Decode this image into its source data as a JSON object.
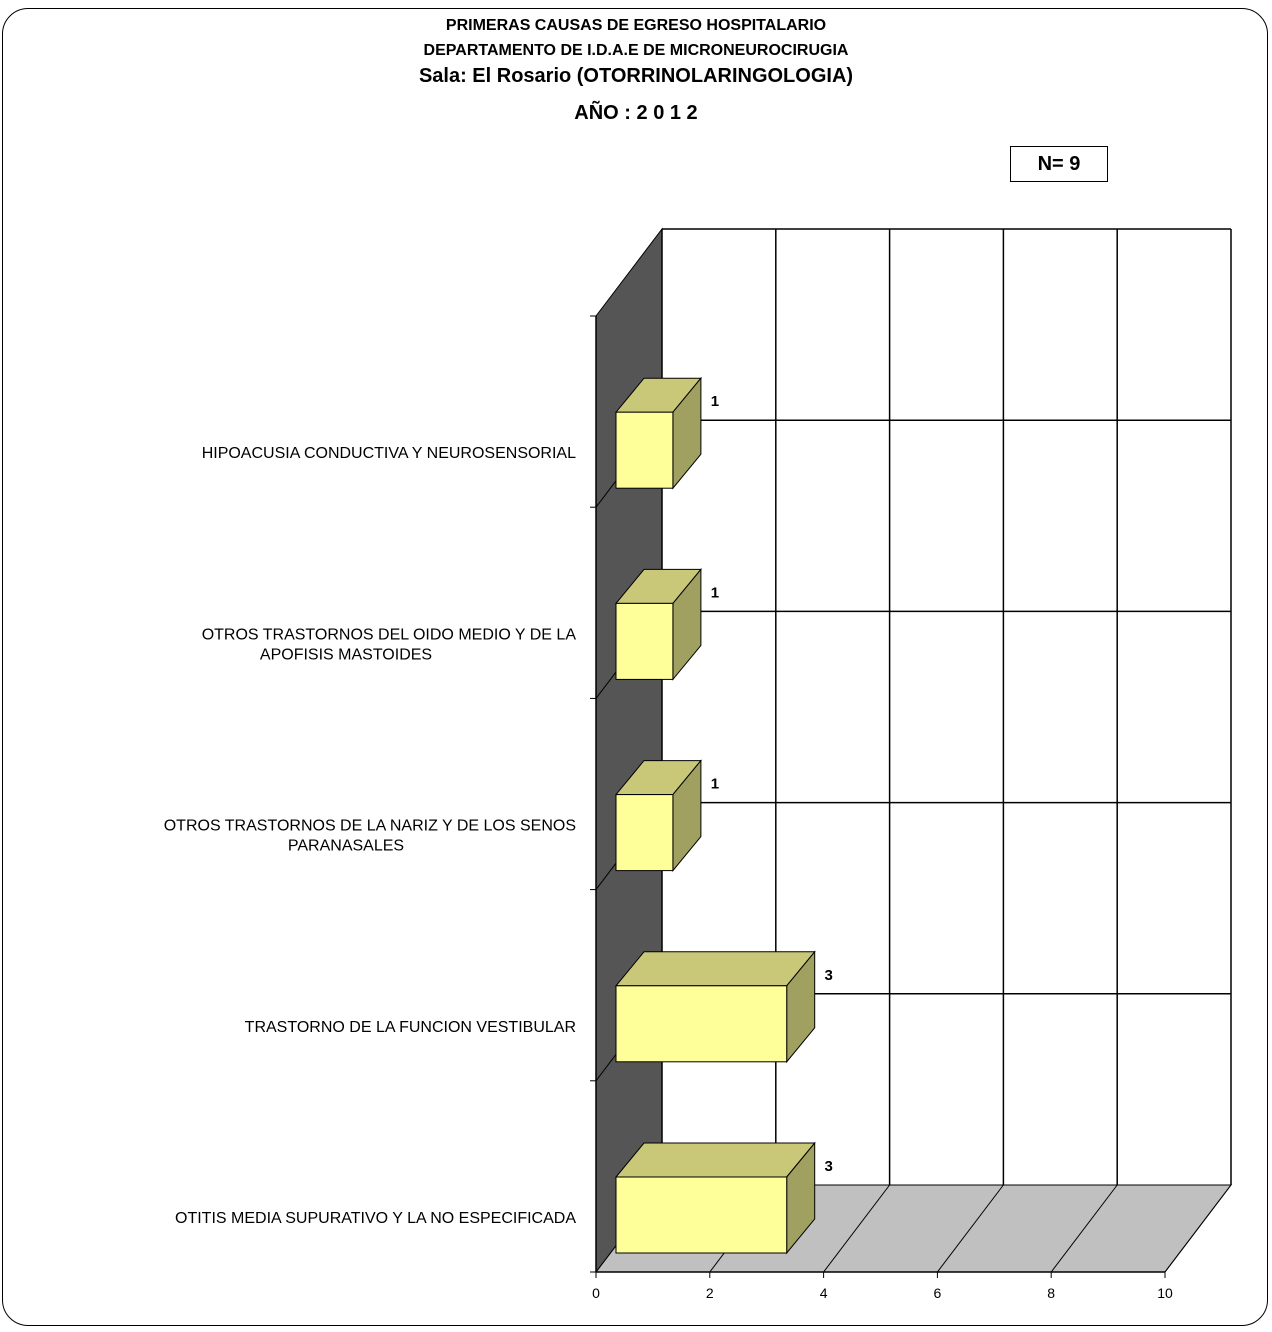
{
  "titles": {
    "line1": "PRIMERAS CAUSAS DE EGRESO HOSPITALARIO",
    "line2": "DEPARTAMENTO DE I.D.A.E DE MICRONEUROCIRUGIA",
    "line3": "Sala: El Rosario (OTORRINOLARINGOLOGIA)",
    "line4": "AÑO : 2 0 1 2"
  },
  "n_label": "N= 9",
  "colors": {
    "bar_front": "#ffff99",
    "bar_top": "#c8c878",
    "bar_side": "#a0a060",
    "wall": "#555555",
    "floor": "#c0c0c0",
    "grid": "#000000"
  },
  "chart_data": {
    "type": "bar",
    "orientation": "horizontal",
    "style": "3d",
    "categories": [
      [
        "HIPOACUSIA CONDUCTIVA Y NEUROSENSORIAL"
      ],
      [
        "OTROS TRASTORNOS DEL OIDO MEDIO Y DE LA",
        "APOFISIS MASTOIDES"
      ],
      [
        "OTROS TRASTORNOS DE LA NARIZ Y DE LOS SENOS",
        "PARANASALES"
      ],
      [
        "TRASTORNO DE LA FUNCION VESTIBULAR"
      ],
      [
        "OTITIS MEDIA SUPURATIVO Y LA NO ESPECIFICADA"
      ]
    ],
    "values": [
      1,
      1,
      1,
      3,
      3
    ],
    "data_labels": [
      "1",
      "1",
      "1",
      "3",
      "3"
    ],
    "xlim": [
      0,
      10
    ],
    "xticks": [
      "0",
      "2",
      "4",
      "6",
      "8",
      "10"
    ],
    "grid": true
  }
}
